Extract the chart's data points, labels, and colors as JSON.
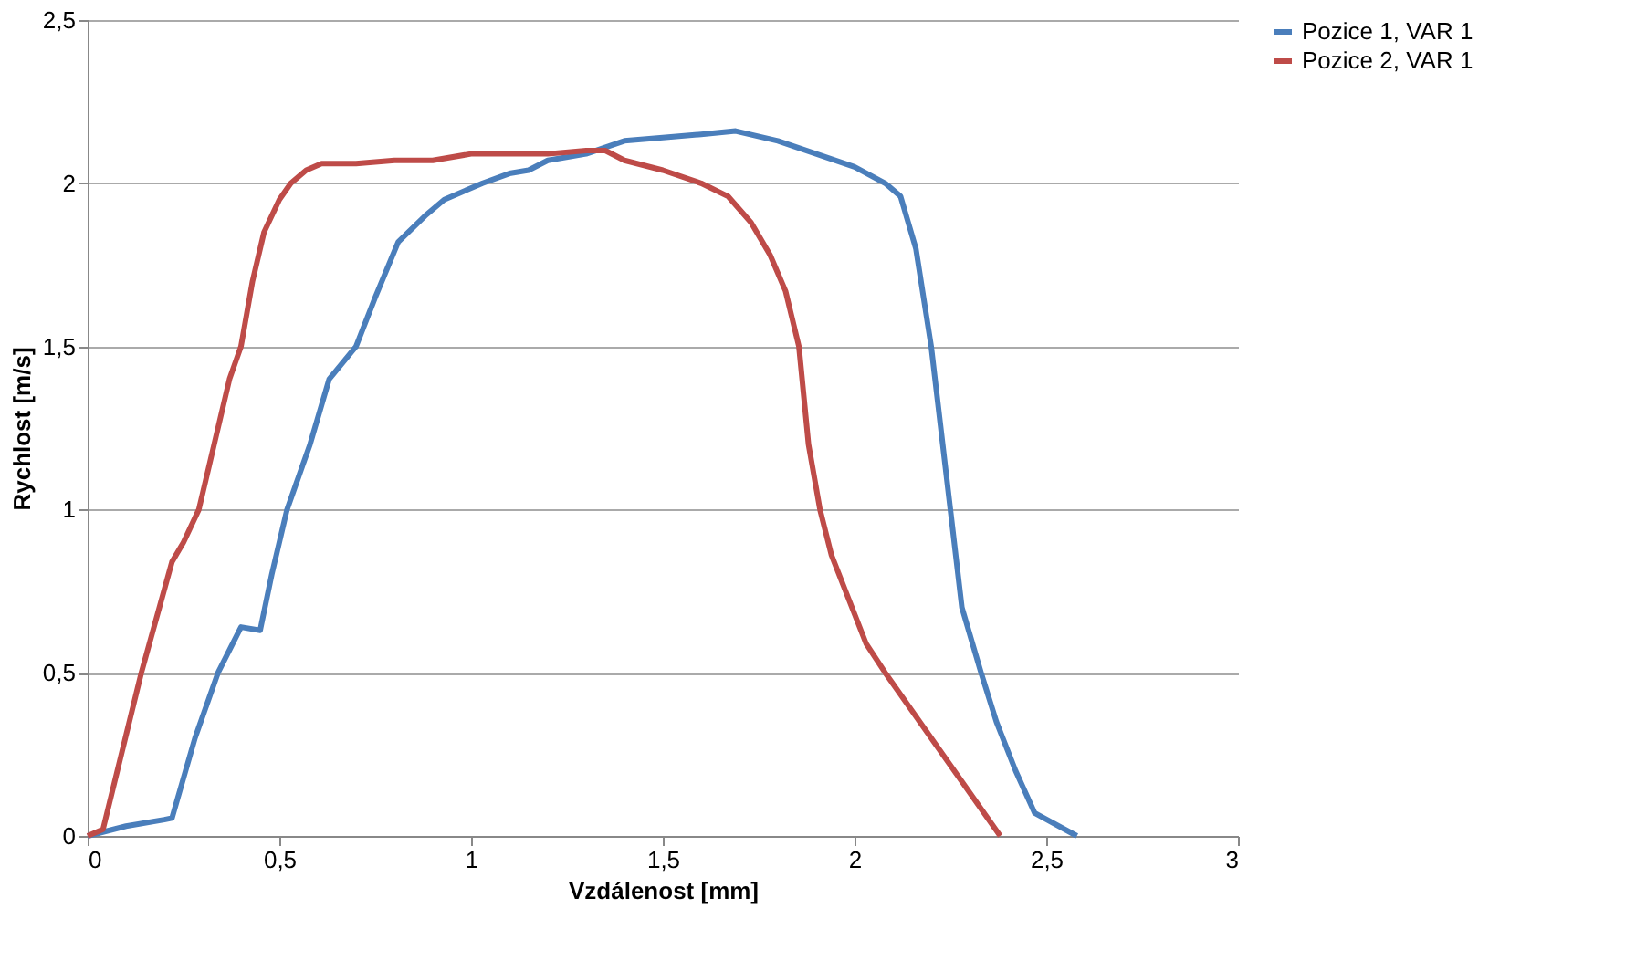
{
  "chart_data": {
    "type": "line",
    "xlabel": "Vzdálenost [mm]",
    "ylabel": "Rychlost [m/s]",
    "xlim": [
      0,
      3
    ],
    "xticks": [
      {
        "value": 0,
        "label": "0"
      },
      {
        "value": 0.5,
        "label": "0,5"
      },
      {
        "value": 1,
        "label": "1"
      },
      {
        "value": 1.5,
        "label": "1,5"
      },
      {
        "value": 2,
        "label": "2"
      },
      {
        "value": 2.5,
        "label": "2,5"
      },
      {
        "value": 3,
        "label": "3"
      }
    ],
    "ylim": [
      0,
      2.5
    ],
    "yticks": [
      {
        "value": 0,
        "label": "0"
      },
      {
        "value": 0.5,
        "label": "0,5"
      },
      {
        "value": 1,
        "label": "1"
      },
      {
        "value": 1.5,
        "label": "1,5"
      },
      {
        "value": 2,
        "label": "2"
      },
      {
        "value": 2.5,
        "label": "2,5"
      }
    ],
    "grid": "y",
    "legend": "right",
    "marker": "none",
    "line_style": "solid",
    "series": [
      {
        "name": "Pozice 1, VAR 1",
        "color": "#4a7ebb",
        "x": [
          0.0,
          0.1,
          0.2,
          0.22,
          0.28,
          0.34,
          0.4,
          0.45,
          0.48,
          0.52,
          0.58,
          0.63,
          0.7,
          0.75,
          0.81,
          0.88,
          0.93,
          1.03,
          1.1,
          1.15,
          1.2,
          1.3,
          1.4,
          1.5,
          1.6,
          1.69,
          1.8,
          1.9,
          2.0,
          2.08,
          2.12,
          2.16,
          2.2,
          2.23,
          2.25,
          2.28,
          2.33,
          2.37,
          2.42,
          2.47,
          2.58
        ],
        "values": [
          0,
          0.03,
          0.05,
          0.055,
          0.3,
          0.5,
          0.64,
          0.63,
          0.8,
          1.0,
          1.2,
          1.4,
          1.5,
          1.65,
          1.82,
          1.9,
          1.95,
          2.0,
          2.03,
          2.04,
          2.07,
          2.09,
          2.13,
          2.14,
          2.15,
          2.16,
          2.13,
          2.09,
          2.05,
          2.0,
          1.96,
          1.8,
          1.5,
          1.2,
          1.0,
          0.7,
          0.5,
          0.35,
          0.2,
          0.07,
          0
        ]
      },
      {
        "name": "Pozice 2, VAR 1",
        "color": "#be4b48",
        "x": [
          0.0,
          0.04,
          0.14,
          0.22,
          0.25,
          0.29,
          0.33,
          0.37,
          0.4,
          0.43,
          0.46,
          0.5,
          0.53,
          0.57,
          0.61,
          0.7,
          0.8,
          0.9,
          1.0,
          1.1,
          1.2,
          1.3,
          1.35,
          1.4,
          1.5,
          1.6,
          1.67,
          1.73,
          1.78,
          1.82,
          1.855,
          1.88,
          1.91,
          1.94,
          2.03,
          2.08,
          2.2,
          2.38
        ],
        "values": [
          0,
          0.02,
          0.5,
          0.84,
          0.9,
          1.0,
          1.2,
          1.4,
          1.5,
          1.7,
          1.85,
          1.95,
          2.0,
          2.04,
          2.06,
          2.06,
          2.07,
          2.07,
          2.09,
          2.09,
          2.09,
          2.1,
          2.1,
          2.07,
          2.04,
          2.0,
          1.96,
          1.88,
          1.78,
          1.67,
          1.5,
          1.2,
          1.0,
          0.86,
          0.59,
          0.5,
          0.3,
          0
        ]
      }
    ]
  }
}
